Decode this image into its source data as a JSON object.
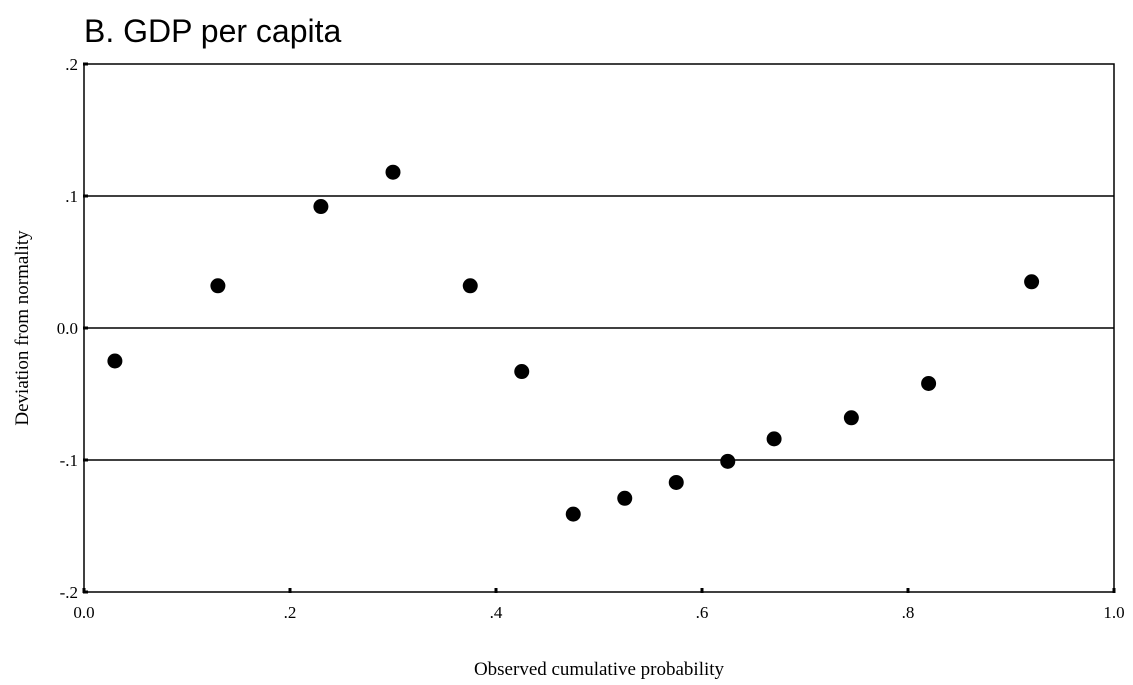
{
  "chart_data": {
    "type": "scatter",
    "title": "B. GDP per capita",
    "xlabel": "Observed cumulative probability",
    "ylabel": "Deviation from normality",
    "xlim": [
      0.0,
      1.0
    ],
    "ylim": [
      -0.2,
      0.2
    ],
    "x_ticks": [
      0.0,
      0.2,
      0.4,
      0.6,
      0.8,
      1.0
    ],
    "x_tick_labels": [
      "0.0",
      ".2",
      ".4",
      ".6",
      ".8",
      "1.0"
    ],
    "y_ticks": [
      0.2,
      0.1,
      0.0,
      -0.1,
      -0.2
    ],
    "y_tick_labels": [
      ".2",
      ".1",
      "0.0",
      "-.1",
      "-.2"
    ],
    "reference_lines_y": [
      0.1,
      0.0,
      -0.1
    ],
    "grid": false,
    "points": [
      {
        "x": 0.03,
        "y": -0.025
      },
      {
        "x": 0.13,
        "y": 0.032
      },
      {
        "x": 0.23,
        "y": 0.092
      },
      {
        "x": 0.3,
        "y": 0.118
      },
      {
        "x": 0.375,
        "y": 0.032
      },
      {
        "x": 0.425,
        "y": -0.033
      },
      {
        "x": 0.475,
        "y": -0.141
      },
      {
        "x": 0.525,
        "y": -0.129
      },
      {
        "x": 0.575,
        "y": -0.117
      },
      {
        "x": 0.625,
        "y": -0.101
      },
      {
        "x": 0.67,
        "y": -0.084
      },
      {
        "x": 0.745,
        "y": -0.068
      },
      {
        "x": 0.82,
        "y": -0.042
      },
      {
        "x": 0.92,
        "y": 0.035
      }
    ]
  }
}
